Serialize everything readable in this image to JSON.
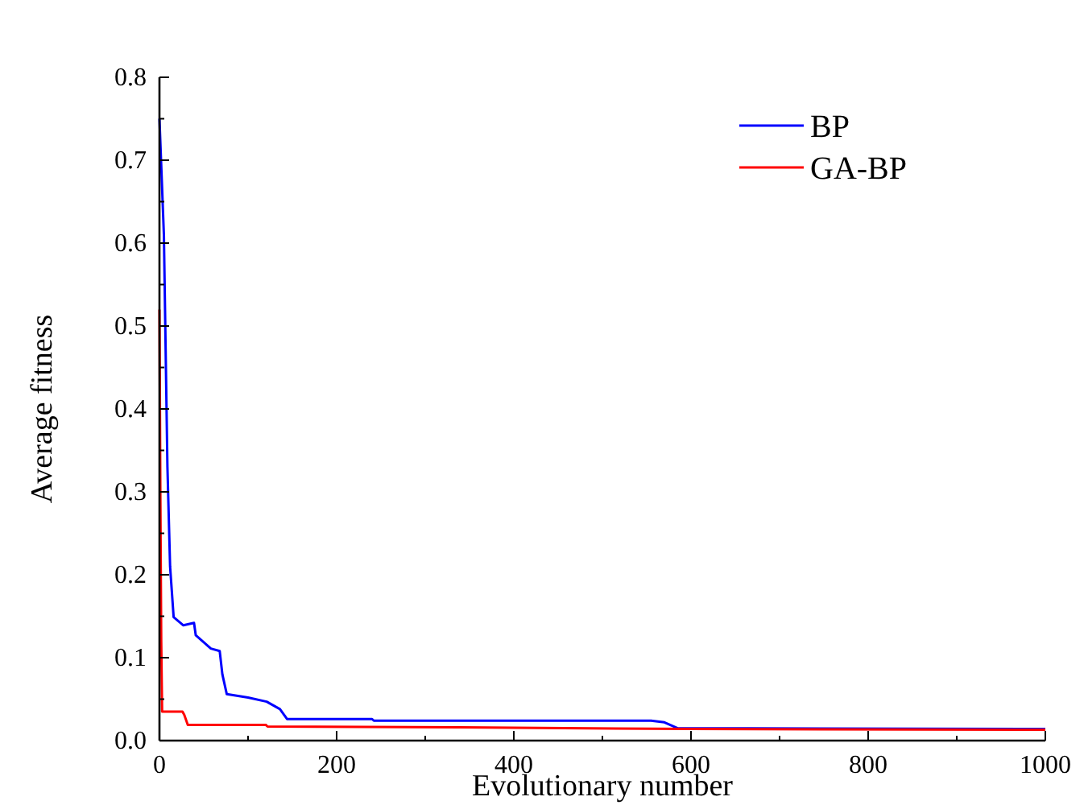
{
  "chart_data": {
    "type": "line",
    "xlabel": "Evolutionary number",
    "ylabel": "Average fitness",
    "xlim": [
      0,
      1000
    ],
    "ylim": [
      0,
      0.8
    ],
    "xticks": [
      0,
      {
        "value": 100,
        "label": null
      },
      200,
      {
        "value": 300,
        "label": null
      },
      400,
      {
        "value": 500,
        "label": null
      },
      600,
      {
        "value": 700,
        "label": null
      },
      800,
      {
        "value": 900,
        "label": null
      },
      1000
    ],
    "yticks": [
      "0.0",
      {
        "value": 0.05,
        "label": null
      },
      0.1,
      {
        "value": 0.15,
        "label": null
      },
      0.2,
      {
        "value": 0.25,
        "label": null
      },
      0.3,
      {
        "value": 0.35,
        "label": null
      },
      0.4,
      {
        "value": 0.45,
        "label": null
      },
      0.5,
      {
        "value": 0.55,
        "label": null
      },
      0.6,
      {
        "value": 0.65,
        "label": null
      },
      0.7,
      {
        "value": 0.75,
        "label": null
      },
      0.8
    ],
    "legend": "top right",
    "grid": false,
    "marker": "none",
    "line_style": "solid",
    "series": [
      {
        "name": "BP",
        "color": "#0000ff",
        "x": [
          0,
          5,
          9,
          12,
          16,
          27,
          39,
          41,
          58,
          68,
          71,
          76,
          100,
          121,
          136,
          144,
          240,
          242,
          555,
          570,
          585,
          1000
        ],
        "values": [
          0.75,
          0.61,
          0.33,
          0.21,
          0.149,
          0.139,
          0.142,
          0.127,
          0.111,
          0.108,
          0.08,
          0.056,
          0.052,
          0.047,
          0.038,
          0.026,
          0.026,
          0.024,
          0.024,
          0.022,
          0.015,
          0.014
        ]
      },
      {
        "name": "GA-BP",
        "color": "#ff0000",
        "x": [
          0,
          1,
          2,
          3,
          26,
          28,
          32,
          120,
          122,
          340,
          600,
          1000
        ],
        "values": [
          0.52,
          0.3,
          0.12,
          0.035,
          0.035,
          0.031,
          0.019,
          0.019,
          0.017,
          0.016,
          0.014,
          0.013
        ]
      }
    ]
  }
}
